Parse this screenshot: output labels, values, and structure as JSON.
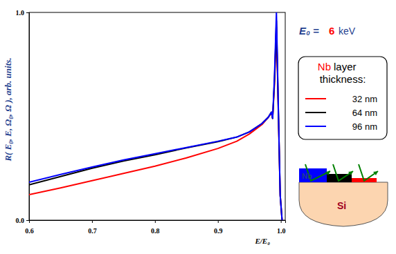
{
  "chart_data": {
    "type": "line",
    "x_label": "E/E₀",
    "y_label": "R( E₀, E, Ω₀, Ω ),  arb. units.",
    "x": [
      0.6,
      0.65,
      0.7,
      0.75,
      0.8,
      0.85,
      0.9,
      0.93,
      0.95,
      0.97,
      0.98,
      0.985,
      0.987,
      0.99,
      0.993,
      0.996,
      0.999,
      1.002
    ],
    "series": [
      {
        "name": "32 nm",
        "color": "#ff0000",
        "values": [
          0.123,
          0.155,
          0.19,
          0.225,
          0.26,
          0.3,
          0.345,
          0.38,
          0.415,
          0.46,
          0.495,
          0.515,
          0.49,
          0.66,
          0.93,
          0.53,
          0.12,
          0.0
        ]
      },
      {
        "name": "64 nm",
        "color": "#000000",
        "values": [
          0.17,
          0.21,
          0.25,
          0.285,
          0.315,
          0.348,
          0.378,
          0.4,
          0.425,
          0.465,
          0.495,
          0.52,
          0.49,
          0.68,
          0.96,
          0.54,
          0.12,
          0.0
        ]
      },
      {
        "name": "96 nm",
        "color": "#0000ff",
        "values": [
          0.183,
          0.22,
          0.256,
          0.29,
          0.32,
          0.35,
          0.38,
          0.4,
          0.425,
          0.465,
          0.495,
          0.52,
          0.49,
          0.7,
          1.0,
          0.55,
          0.12,
          0.0
        ]
      }
    ],
    "xlim": [
      0.6,
      1.007
    ],
    "ylim": [
      0,
      1
    ],
    "xticks": [
      0.6,
      0.7,
      0.8,
      0.9,
      {
        "value": 1,
        "label": "1.0"
      }
    ],
    "yticks": [
      {
        "value": 0,
        "label": "0.0"
      },
      {
        "value": 1,
        "label": "1.0"
      }
    ],
    "legend": "right",
    "annotations": [
      {
        "text": "E₀ =",
        "color": "#1f3f8f"
      },
      {
        "text": "6",
        "color": "#ff0000"
      },
      {
        "text": "keV",
        "color": "#1f3f8f"
      },
      {
        "text": "Nb",
        "color": "#ff0000"
      },
      {
        "text": "layer",
        "color": "#000000"
      },
      {
        "text": "thickness:",
        "color": "#000000"
      },
      {
        "text": "Nb",
        "color": "#1f3f8f"
      },
      {
        "text": "Si",
        "color": "#a00020"
      }
    ]
  }
}
